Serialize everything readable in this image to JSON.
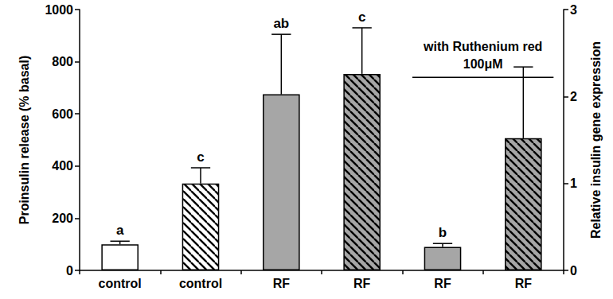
{
  "chart_data": {
    "type": "bar",
    "categories": [
      "control",
      "control",
      "RF",
      "RF",
      "RF",
      "RF"
    ],
    "y_label": "Proinsulin release (% basal)",
    "y2_label": "Relative insulin gene expression",
    "ylim": [
      0,
      1000
    ],
    "yticks": [
      0,
      200,
      400,
      600,
      800,
      1000
    ],
    "y2lim": [
      0,
      3
    ],
    "y2ticks": [
      0,
      1,
      2,
      3
    ],
    "grid": false,
    "series": [
      {
        "axis": "y",
        "values": [
          100,
          null,
          675,
          null,
          90,
          null
        ],
        "errors": [
          12,
          null,
          230,
          null,
          13,
          null
        ],
        "significance": [
          "a",
          null,
          "ab",
          null,
          "b",
          null
        ],
        "colors": [
          "#ffffff",
          null,
          "#a6a6a6",
          null,
          "#a6a6a6",
          null
        ]
      },
      {
        "axis": "y2",
        "values": [
          null,
          1.0,
          null,
          2.26,
          null,
          1.52
        ],
        "errors": [
          null,
          0.18,
          null,
          0.53,
          null,
          0.82
        ],
        "significance": [
          null,
          "c",
          null,
          "c",
          null,
          null
        ],
        "colors": [
          null,
          "#ffffff",
          null,
          "#a6a6a6",
          null,
          "#a6a6a6"
        ]
      }
    ],
    "annotations": [
      {
        "text": "with Ruthenium red\n100μM",
        "from": 4,
        "to": 5,
        "y": 740
      }
    ]
  }
}
